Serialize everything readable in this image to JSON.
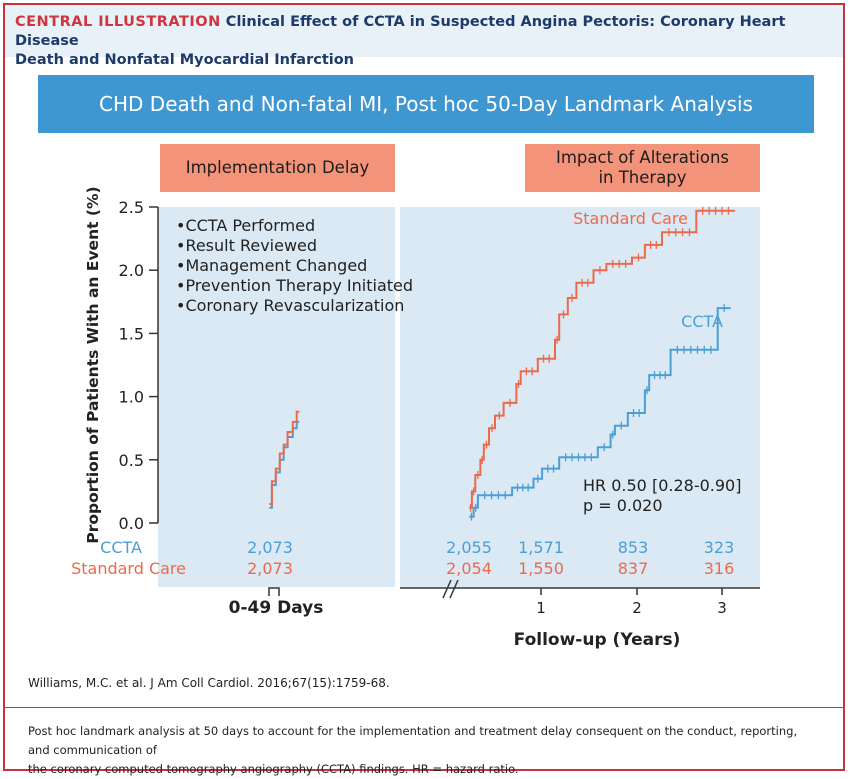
{
  "header": {
    "label": "CENTRAL ILLUSTRATION",
    "title_line1": "Clinical Effect of CCTA in Suspected Angina Pectoris: Coronary Heart Disease",
    "title_line2": "Death and Nonfatal Myocardial Infarction"
  },
  "banner": {
    "title": "CHD Death and Non-fatal MI, Post hoc 50-Day Landmark Analysis"
  },
  "tags": {
    "left": "Implementation Delay",
    "right_line1": "Impact of Alterations",
    "right_line2": "in Therapy"
  },
  "bullets": [
    "•CCTA Performed",
    "•Result Reviewed",
    "•Management Changed",
    "•Prevention Therapy Initiated",
    "•Coronary Revascularization"
  ],
  "stats": {
    "hr": "HR 0.50 [0.28-0.90]",
    "p": "p = 0.020"
  },
  "colors": {
    "ccta": "#4a9fd5",
    "standard": "#ec6a4c",
    "panel": "#dbe9f5",
    "axis": "#333333"
  },
  "chart_data": {
    "type": "line",
    "ylabel": "Proportion of Patients With an Event (%)",
    "ylim": [
      0,
      2.5
    ],
    "yticks": [
      "0.0",
      "0.5",
      "1.0",
      "1.5",
      "2.0",
      "2.5"
    ],
    "segments": {
      "early": {
        "label": "0-49 Days",
        "xlim": [
          0,
          49
        ]
      },
      "late": {
        "label": "Follow-up (Years)",
        "xlim": [
          0,
          3.2
        ],
        "xticks": [
          "1",
          "2",
          "3"
        ]
      }
    },
    "series": [
      {
        "name": "CCTA",
        "label_text": "CCTA",
        "early": [
          [
            1,
            0.12
          ],
          [
            3,
            0.12
          ],
          [
            3,
            0.3
          ],
          [
            6,
            0.3
          ],
          [
            6,
            0.4
          ],
          [
            9,
            0.4
          ],
          [
            9,
            0.5
          ],
          [
            12,
            0.5
          ],
          [
            12,
            0.6
          ],
          [
            15,
            0.6
          ],
          [
            15,
            0.68
          ],
          [
            19,
            0.68
          ],
          [
            19,
            0.75
          ],
          [
            22,
            0.75
          ],
          [
            22,
            0.8
          ],
          [
            24,
            0.8
          ]
        ],
        "late": [
          [
            0.05,
            0.05
          ],
          [
            0.1,
            0.05
          ],
          [
            0.1,
            0.12
          ],
          [
            0.15,
            0.12
          ],
          [
            0.15,
            0.22
          ],
          [
            0.55,
            0.22
          ],
          [
            0.55,
            0.28
          ],
          [
            0.8,
            0.28
          ],
          [
            0.8,
            0.35
          ],
          [
            0.9,
            0.35
          ],
          [
            0.9,
            0.43
          ],
          [
            1.1,
            0.43
          ],
          [
            1.1,
            0.52
          ],
          [
            1.55,
            0.52
          ],
          [
            1.55,
            0.6
          ],
          [
            1.7,
            0.6
          ],
          [
            1.7,
            0.7
          ],
          [
            1.75,
            0.7
          ],
          [
            1.75,
            0.77
          ],
          [
            1.9,
            0.77
          ],
          [
            1.9,
            0.87
          ],
          [
            2.1,
            0.87
          ],
          [
            2.1,
            1.05
          ],
          [
            2.15,
            1.05
          ],
          [
            2.15,
            1.17
          ],
          [
            2.4,
            1.17
          ],
          [
            2.4,
            1.37
          ],
          [
            2.95,
            1.37
          ],
          [
            2.95,
            1.7
          ],
          [
            3.1,
            1.7
          ]
        ]
      },
      {
        "name": "Standard Care",
        "label_text": "Standard Care",
        "early": [
          [
            1,
            0.15
          ],
          [
            3,
            0.15
          ],
          [
            3,
            0.33
          ],
          [
            6,
            0.33
          ],
          [
            6,
            0.43
          ],
          [
            9,
            0.43
          ],
          [
            9,
            0.55
          ],
          [
            12,
            0.55
          ],
          [
            12,
            0.62
          ],
          [
            15,
            0.62
          ],
          [
            15,
            0.72
          ],
          [
            19,
            0.72
          ],
          [
            19,
            0.8
          ],
          [
            22,
            0.8
          ],
          [
            22,
            0.88
          ],
          [
            24,
            0.88
          ]
        ],
        "late": [
          [
            0.05,
            0.12
          ],
          [
            0.08,
            0.12
          ],
          [
            0.08,
            0.25
          ],
          [
            0.12,
            0.25
          ],
          [
            0.12,
            0.38
          ],
          [
            0.18,
            0.38
          ],
          [
            0.18,
            0.5
          ],
          [
            0.22,
            0.5
          ],
          [
            0.22,
            0.62
          ],
          [
            0.28,
            0.62
          ],
          [
            0.28,
            0.75
          ],
          [
            0.35,
            0.75
          ],
          [
            0.35,
            0.85
          ],
          [
            0.45,
            0.85
          ],
          [
            0.45,
            0.95
          ],
          [
            0.6,
            0.95
          ],
          [
            0.6,
            1.1
          ],
          [
            0.65,
            1.1
          ],
          [
            0.65,
            1.2
          ],
          [
            0.85,
            1.2
          ],
          [
            0.85,
            1.3
          ],
          [
            1.05,
            1.3
          ],
          [
            1.05,
            1.45
          ],
          [
            1.1,
            1.45
          ],
          [
            1.1,
            1.65
          ],
          [
            1.2,
            1.65
          ],
          [
            1.2,
            1.78
          ],
          [
            1.3,
            1.78
          ],
          [
            1.3,
            1.9
          ],
          [
            1.5,
            1.9
          ],
          [
            1.5,
            2.0
          ],
          [
            1.65,
            2.0
          ],
          [
            1.65,
            2.05
          ],
          [
            1.95,
            2.05
          ],
          [
            1.95,
            2.1
          ],
          [
            2.1,
            2.1
          ],
          [
            2.1,
            2.2
          ],
          [
            2.3,
            2.2
          ],
          [
            2.3,
            2.3
          ],
          [
            2.7,
            2.3
          ],
          [
            2.7,
            2.47
          ],
          [
            3.15,
            2.47
          ]
        ]
      }
    ],
    "risk_table": {
      "rows": [
        {
          "name": "CCTA",
          "early": [
            "2,073"
          ],
          "late": [
            "2,055",
            "1,571",
            "853",
            "323"
          ]
        },
        {
          "name": "Standard Care",
          "early": [
            "2,073"
          ],
          "late": [
            "2,054",
            "1,550",
            "837",
            "316"
          ]
        }
      ],
      "late_x": [
        0,
        1,
        2,
        3
      ]
    }
  },
  "citation": "Williams, M.C. et al. J Am Coll Cardiol. 2016;67(15):1759-68.",
  "footer": {
    "line1": "Post hoc landmark analysis at 50 days to account for the implementation and treatment delay consequent on the conduct, reporting, and communication of",
    "line2": "the coronary computed tomography angiography (CCTA) findings. HR = hazard ratio."
  }
}
